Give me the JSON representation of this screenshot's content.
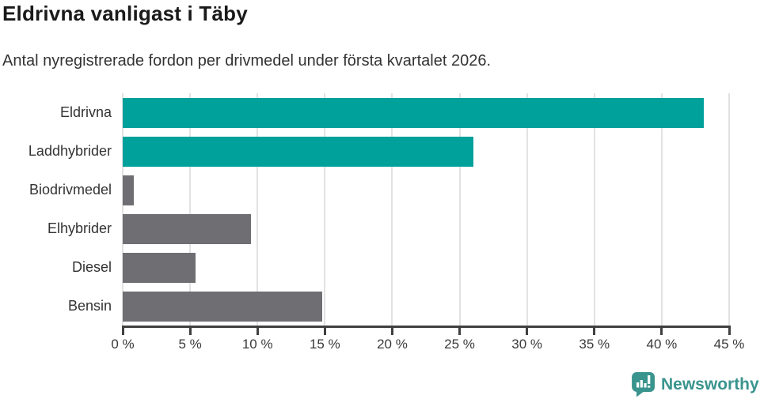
{
  "header": {
    "title": "Eldrivna vanligast i Täby",
    "subtitle": "Antal nyregistrerade fordon per drivmedel under första kvartalet 2026."
  },
  "chart_data": {
    "type": "bar",
    "orientation": "horizontal",
    "title": "Eldrivna vanligast i Täby",
    "subtitle": "Antal nyregistrerade fordon per drivmedel under första kvartalet 2026.",
    "xlabel": "",
    "ylabel": "",
    "unit": "%",
    "categories": [
      "Eldrivna",
      "Laddhybrider",
      "Biodrivmedel",
      "Elhybrider",
      "Diesel",
      "Bensin"
    ],
    "values": [
      43.1,
      26.0,
      0.8,
      9.5,
      5.4,
      14.8
    ],
    "bar_colors": [
      "#00a09b",
      "#00a09b",
      "#6e6e73",
      "#6e6e73",
      "#6e6e73",
      "#6e6e73"
    ],
    "xlim": [
      0,
      45
    ],
    "x_ticks": [
      0,
      5,
      10,
      15,
      20,
      25,
      30,
      35,
      40,
      45
    ],
    "x_tick_labels": [
      "0 %",
      "5 %",
      "10 %",
      "15 %",
      "20 %",
      "25 %",
      "30 %",
      "35 %",
      "40 %",
      "45 %"
    ],
    "grid": true,
    "legend": false
  },
  "colors": {
    "highlight": "#00a09b",
    "neutral": "#6e6e73",
    "gridline": "#e2e2e2",
    "axis": "#404040",
    "brand": "#3a948e"
  },
  "footer": {
    "brand": "Newsworthy",
    "logo_icon": "newsworthy-speech-bubble-barchart-icon"
  }
}
